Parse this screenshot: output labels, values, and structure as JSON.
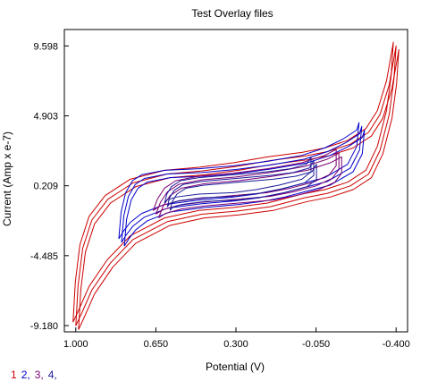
{
  "chart_data": {
    "type": "line",
    "title": "Test Overlay files",
    "xlabel": "Potential (V)",
    "ylabel": "Current (Amp x e-7)",
    "xlim": [
      1.05,
      -0.45
    ],
    "ylim": [
      -9.6,
      10.7
    ],
    "x_ticks": [
      "1.000",
      "0.650",
      "0.300",
      "-0.050",
      "-0.400"
    ],
    "x_tick_values": [
      1.0,
      0.65,
      0.3,
      -0.05,
      -0.4
    ],
    "y_ticks": [
      "9.598",
      "4.903",
      "0.209",
      "-4.485",
      "-9.180"
    ],
    "y_tick_values": [
      9.598,
      4.903,
      0.209,
      -4.485,
      -9.18
    ],
    "grid": false,
    "legend_position": "bottom-left",
    "series": [
      {
        "name": "1",
        "color": "#cc0000",
        "x": [
          1.0,
          0.99,
          0.97,
          0.93,
          0.86,
          0.75,
          0.6,
          0.45,
          0.3,
          0.15,
          0.0,
          -0.1,
          -0.2,
          -0.28,
          -0.33,
          -0.37,
          -0.4,
          -0.39,
          -0.37,
          -0.33,
          -0.28,
          -0.2,
          -0.1,
          0.0,
          0.15,
          0.3,
          0.45,
          0.6,
          0.75,
          0.85,
          0.93,
          0.97,
          1.0
        ],
        "y": [
          -9.2,
          -6.5,
          -4.0,
          -2.1,
          -0.7,
          0.4,
          1.0,
          1.2,
          1.5,
          1.9,
          2.2,
          2.5,
          3.0,
          3.8,
          5.0,
          7.0,
          9.6,
          7.3,
          5.0,
          2.6,
          1.0,
          0.2,
          -0.3,
          -0.6,
          -1.2,
          -1.5,
          -1.7,
          -2.2,
          -3.4,
          -5.0,
          -6.8,
          -8.2,
          -9.2
        ]
      },
      {
        "name": "2",
        "color": "#0000cc",
        "x": [
          0.8,
          0.79,
          0.77,
          0.74,
          0.7,
          0.6,
          0.45,
          0.3,
          0.15,
          0.0,
          -0.1,
          -0.18,
          -0.24,
          -0.25,
          -0.24,
          -0.2,
          -0.1,
          0.0,
          0.1,
          0.2,
          0.3,
          0.45,
          0.6,
          0.7,
          0.75,
          0.78,
          0.8
        ],
        "y": [
          -3.6,
          -1.8,
          -0.5,
          0.3,
          0.7,
          1.0,
          1.1,
          1.3,
          1.6,
          2.0,
          2.5,
          3.1,
          3.7,
          4.2,
          2.6,
          1.4,
          0.5,
          0.1,
          -0.3,
          -0.6,
          -0.8,
          -1.0,
          -1.3,
          -1.9,
          -2.5,
          -3.1,
          -3.6
        ]
      },
      {
        "name": "3",
        "color": "#7a006e",
        "x": [
          0.65,
          0.63,
          0.6,
          0.55,
          0.45,
          0.3,
          0.15,
          0.0,
          -0.1,
          -0.15,
          -0.15,
          -0.12,
          -0.05,
          0.05,
          0.15,
          0.3,
          0.45,
          0.55,
          0.62,
          0.65
        ],
        "y": [
          -1.7,
          -0.9,
          -0.2,
          0.3,
          0.6,
          0.8,
          1.1,
          1.5,
          2.0,
          2.4,
          1.3,
          0.7,
          0.2,
          -0.2,
          -0.5,
          -0.7,
          -0.9,
          -1.1,
          -1.4,
          -1.7
        ]
      },
      {
        "name": "4",
        "color": "#1a1a99",
        "x": [
          0.6,
          0.59,
          0.57,
          0.53,
          0.45,
          0.3,
          0.15,
          0.05,
          -0.02,
          -0.04,
          -0.04,
          0.0,
          0.1,
          0.2,
          0.3,
          0.45,
          0.55,
          0.59,
          0.6
        ],
        "y": [
          -1.2,
          -0.6,
          -0.1,
          0.3,
          0.5,
          0.7,
          0.9,
          1.1,
          1.4,
          1.9,
          0.9,
          0.4,
          0.0,
          -0.3,
          -0.5,
          -0.6,
          -0.8,
          -1.0,
          -1.2
        ]
      }
    ]
  },
  "legend_items": [
    "1",
    "2,",
    "3,",
    "4,"
  ],
  "legend_colors": [
    "#cc0000",
    "#0000cc",
    "#7a006e",
    "#1a1a99"
  ]
}
